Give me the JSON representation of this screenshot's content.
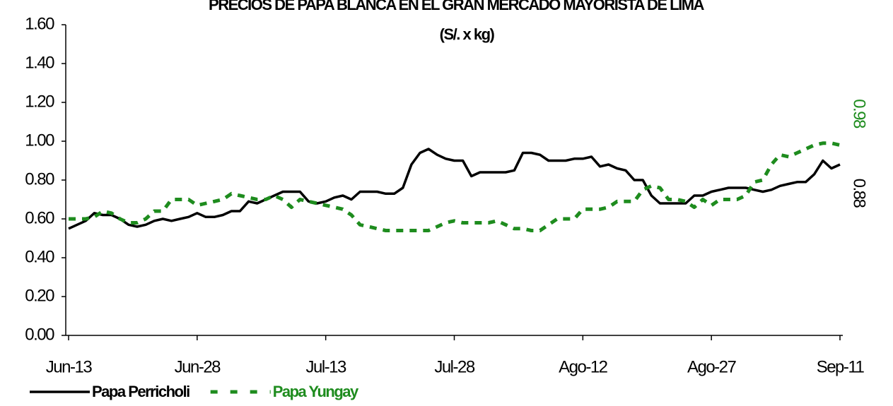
{
  "chart_data": {
    "type": "line",
    "title": "PRECIOS DE PAPA BLANCA EN EL GRAN MERCADO MAYORISTA DE LIMA",
    "subtitle": "(S/. x kg)",
    "categories": [
      "Jun-13",
      null,
      null,
      null,
      null,
      null,
      null,
      null,
      null,
      null,
      null,
      null,
      null,
      null,
      null,
      "Jun-28",
      null,
      null,
      null,
      null,
      null,
      null,
      null,
      null,
      null,
      null,
      null,
      null,
      null,
      null,
      "Jul-13",
      null,
      null,
      null,
      null,
      null,
      null,
      null,
      null,
      null,
      null,
      null,
      null,
      null,
      null,
      "Jul-28",
      null,
      null,
      null,
      null,
      null,
      null,
      null,
      null,
      null,
      null,
      null,
      null,
      null,
      null,
      "Ago-12",
      null,
      null,
      null,
      null,
      null,
      null,
      null,
      null,
      null,
      null,
      null,
      null,
      null,
      null,
      "Ago-27",
      null,
      null,
      null,
      null,
      null,
      null,
      null,
      null,
      null,
      null,
      null,
      null,
      null,
      null,
      "Sep-11"
    ],
    "series": [
      {
        "name": "Papa Perricholi",
        "color": "#000000",
        "dashed": false,
        "values": [
          0.55,
          0.57,
          0.59,
          0.63,
          0.62,
          0.62,
          0.6,
          0.57,
          0.56,
          0.57,
          0.59,
          0.6,
          0.59,
          0.6,
          0.61,
          0.63,
          0.61,
          0.61,
          0.62,
          0.64,
          0.64,
          0.69,
          0.68,
          0.7,
          0.72,
          0.74,
          0.74,
          0.74,
          0.69,
          0.68,
          0.69,
          0.71,
          0.72,
          0.7,
          0.74,
          0.74,
          0.74,
          0.73,
          0.73,
          0.76,
          0.88,
          0.94,
          0.96,
          0.93,
          0.91,
          0.9,
          0.9,
          0.82,
          0.84,
          0.84,
          0.84,
          0.84,
          0.85,
          0.94,
          0.94,
          0.93,
          0.9,
          0.9,
          0.9,
          0.91,
          0.91,
          0.92,
          0.87,
          0.88,
          0.86,
          0.85,
          0.8,
          0.8,
          0.72,
          0.68,
          0.68,
          0.68,
          0.68,
          0.72,
          0.72,
          0.74,
          0.75,
          0.76,
          0.76,
          0.76,
          0.75,
          0.74,
          0.75,
          0.77,
          0.78,
          0.79,
          0.79,
          0.83,
          0.9,
          0.86,
          0.88
        ]
      },
      {
        "name": "Papa Yungay",
        "color": "#1e8c1e",
        "dashed": true,
        "values": [
          0.6,
          0.6,
          0.6,
          0.61,
          0.64,
          0.63,
          0.6,
          0.58,
          0.58,
          0.6,
          0.64,
          0.64,
          0.7,
          0.7,
          0.7,
          0.67,
          0.68,
          0.69,
          0.7,
          0.73,
          0.72,
          0.71,
          0.7,
          0.7,
          0.72,
          0.7,
          0.66,
          0.7,
          0.69,
          0.68,
          0.67,
          0.66,
          0.65,
          0.62,
          0.57,
          0.56,
          0.55,
          0.54,
          0.54,
          0.54,
          0.54,
          0.54,
          0.54,
          0.56,
          0.58,
          0.59,
          0.58,
          0.58,
          0.58,
          0.58,
          0.59,
          0.57,
          0.55,
          0.55,
          0.54,
          0.54,
          0.57,
          0.6,
          0.6,
          0.6,
          0.65,
          0.65,
          0.65,
          0.66,
          0.69,
          0.69,
          0.69,
          0.75,
          0.77,
          0.76,
          0.7,
          0.7,
          0.69,
          0.66,
          0.7,
          0.67,
          0.7,
          0.7,
          0.7,
          0.72,
          0.79,
          0.8,
          0.88,
          0.93,
          0.92,
          0.94,
          0.96,
          0.98,
          0.99,
          0.99,
          0.98
        ]
      }
    ],
    "ylim": [
      0,
      1.6
    ],
    "yticks": [
      {
        "value": 0,
        "label": "0.00"
      },
      {
        "value": 0.2,
        "label": "0.20"
      },
      {
        "value": 0.4,
        "label": "0.40"
      },
      {
        "value": 0.6,
        "label": "0.60"
      },
      {
        "value": 0.8,
        "label": "0.80"
      },
      {
        "value": 1,
        "label": "1.00"
      },
      {
        "value": 1.2,
        "label": "1.20"
      },
      {
        "value": 1.4,
        "label": "1.40"
      },
      {
        "value": 1.6,
        "label": "1.60"
      }
    ],
    "grid": false,
    "legend": "bottom-left"
  }
}
